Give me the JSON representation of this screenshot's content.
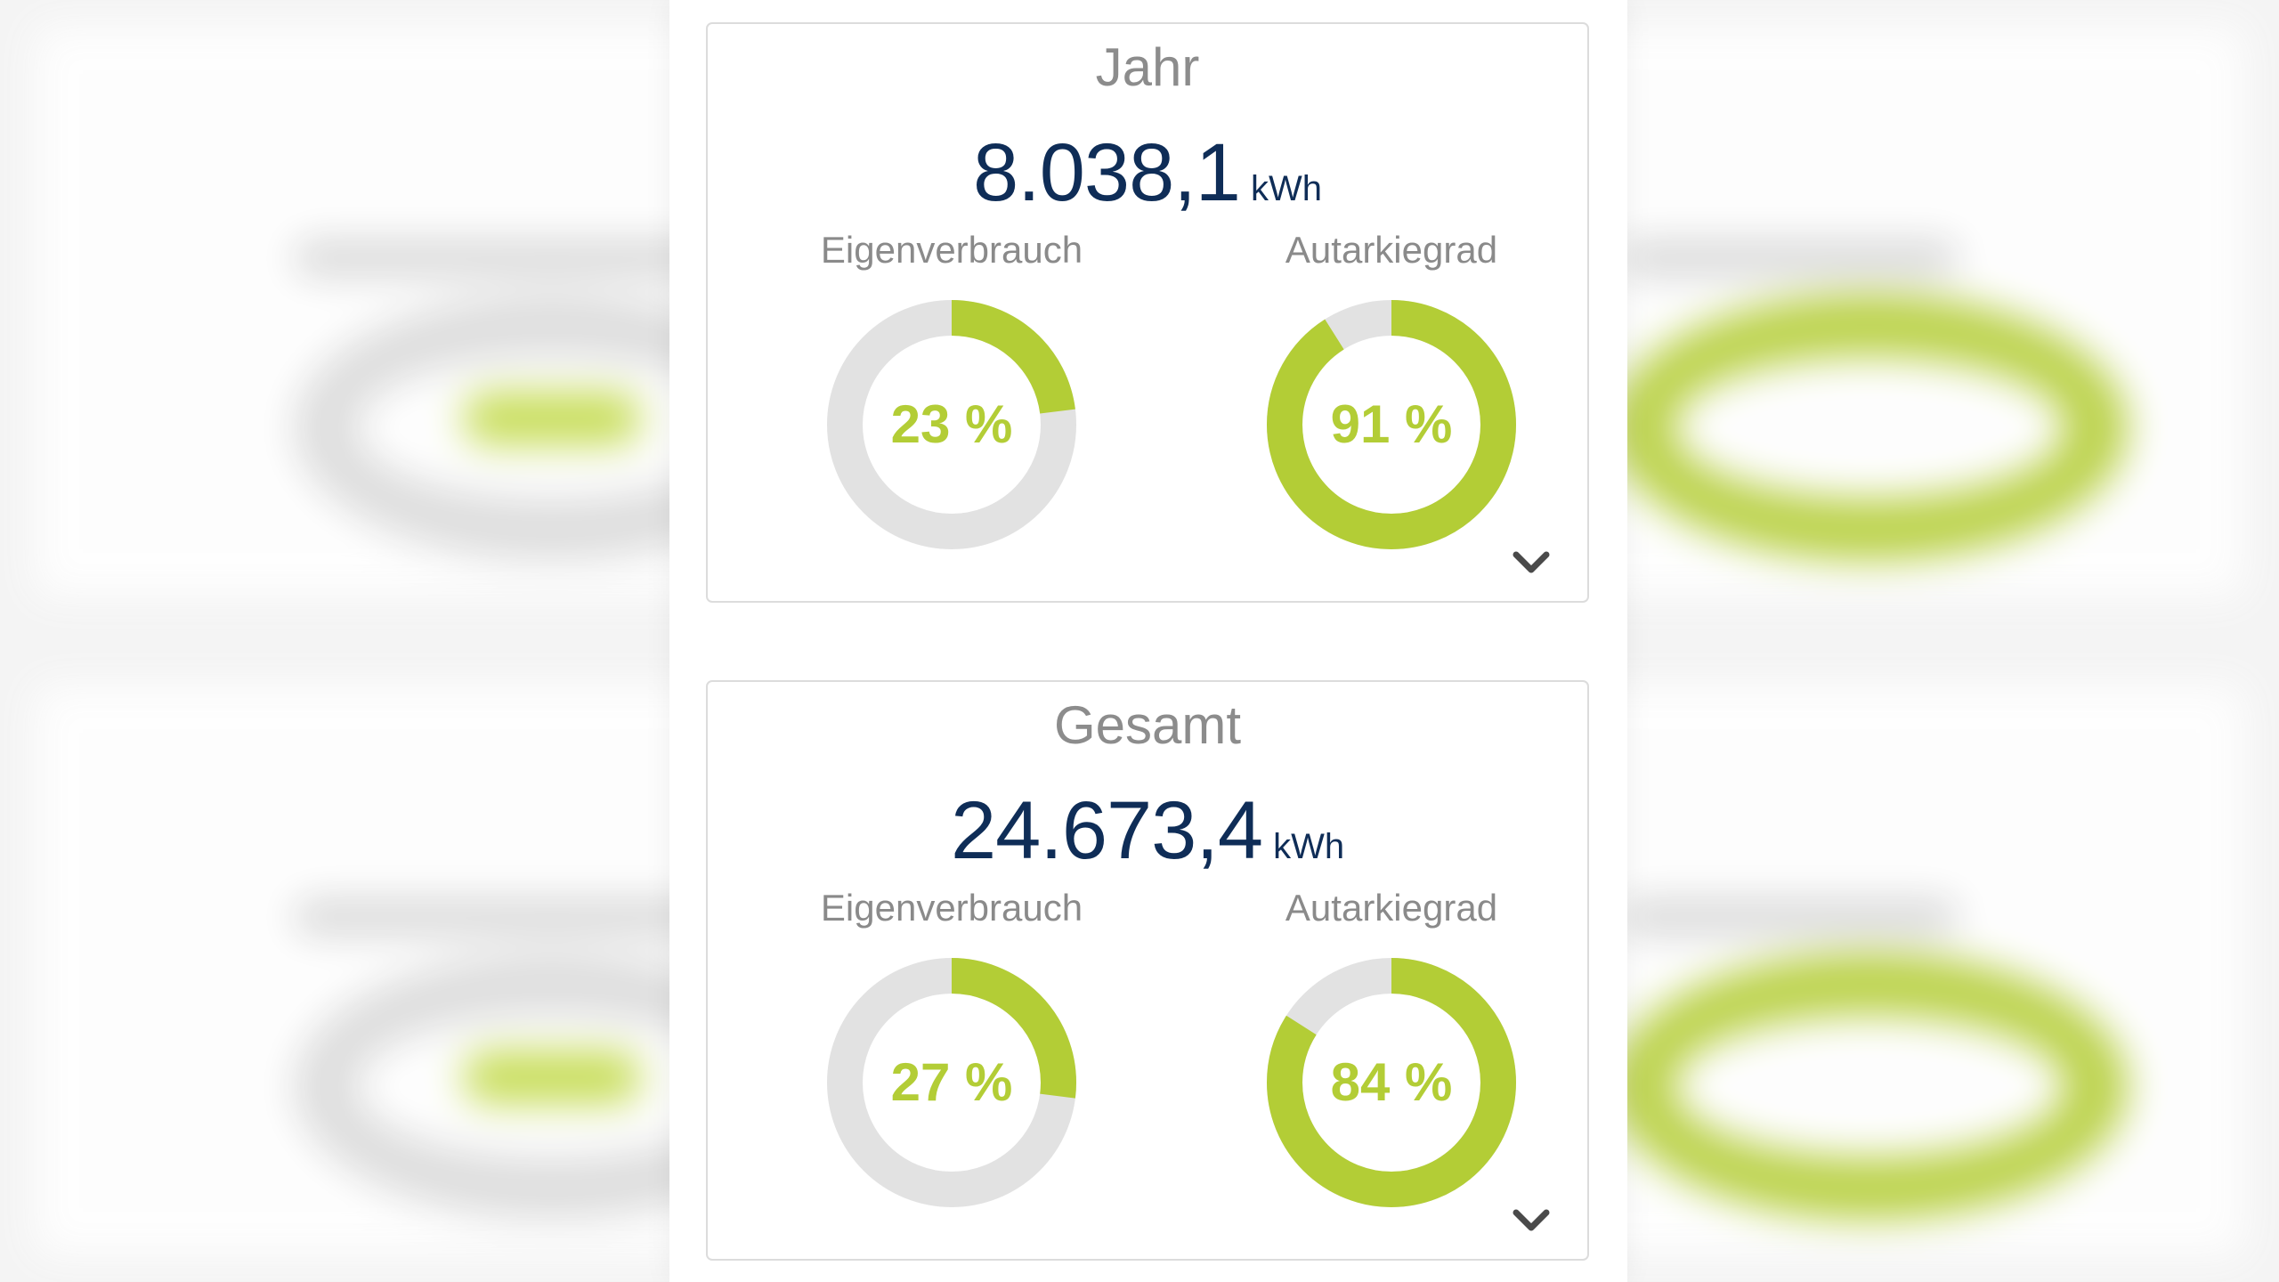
{
  "colors": {
    "accent_green": "#b3cd36",
    "ring_track": "#e2e2e2",
    "value_navy": "#0f2d57",
    "label_gray": "#8a8a8a"
  },
  "cards": [
    {
      "title": "Jahr",
      "energy_value": "8.038,1",
      "energy_unit": "kWh",
      "metrics": [
        {
          "label": "Eigenverbrauch",
          "value_text": "23 %",
          "percent": 23
        },
        {
          "label": "Autarkiegrad",
          "value_text": "91 %",
          "percent": 91
        }
      ],
      "expand_icon": "chevron-down-icon"
    },
    {
      "title": "Gesamt",
      "energy_value": "24.673,4",
      "energy_unit": "kWh",
      "metrics": [
        {
          "label": "Eigenverbrauch",
          "value_text": "27 %",
          "percent": 27
        },
        {
          "label": "Autarkiegrad",
          "value_text": "84 %",
          "percent": 84
        }
      ],
      "expand_icon": "chevron-down-icon"
    }
  ]
}
